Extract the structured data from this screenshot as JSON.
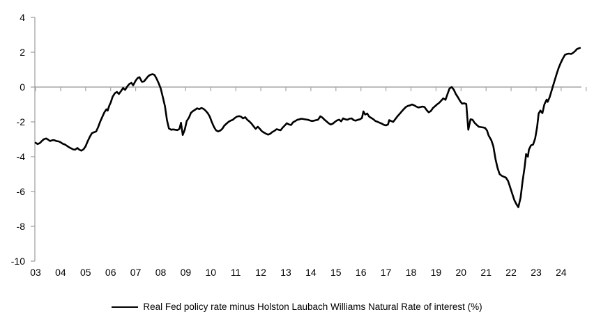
{
  "chart": {
    "legend_label": "Real Fed policy rate minus Holston Laubach Williams Natural Rate of interest (%)",
    "colors": {
      "line": "#000000",
      "zero_line": "#a6a6a6",
      "axis": "#9b9b9b",
      "tick": "#a6a6a6",
      "label": "#000000",
      "background": "#ffffff"
    }
  },
  "chart_data": {
    "type": "line",
    "title": "",
    "xlabel": "",
    "ylabel": "",
    "grid": false,
    "legend_position": "bottom-center",
    "ylim": [
      -10,
      4
    ],
    "xlim": [
      2003,
      2025
    ],
    "y_ticks": [
      4,
      2,
      0,
      -2,
      -4,
      -6,
      -8,
      -10
    ],
    "x_ticks": [
      {
        "year": 2003,
        "label": "03"
      },
      {
        "year": 2004,
        "label": "04"
      },
      {
        "year": 2005,
        "label": "05"
      },
      {
        "year": 2006,
        "label": "06"
      },
      {
        "year": 2007,
        "label": "07"
      },
      {
        "year": 2008,
        "label": "08"
      },
      {
        "year": 2009,
        "label": "09"
      },
      {
        "year": 2010,
        "label": "10"
      },
      {
        "year": 2011,
        "label": "11"
      },
      {
        "year": 2012,
        "label": "12"
      },
      {
        "year": 2013,
        "label": "13"
      },
      {
        "year": 2014,
        "label": "14"
      },
      {
        "year": 2015,
        "label": "15"
      },
      {
        "year": 2016,
        "label": "16"
      },
      {
        "year": 2017,
        "label": "17"
      },
      {
        "year": 2018,
        "label": "18"
      },
      {
        "year": 2019,
        "label": "19"
      },
      {
        "year": 2020,
        "label": "20"
      },
      {
        "year": 2021,
        "label": "21"
      },
      {
        "year": 2022,
        "label": "22"
      },
      {
        "year": 2023,
        "label": "23"
      },
      {
        "year": 2024,
        "label": "24"
      }
    ],
    "series": [
      {
        "name": "Real Fed policy rate minus Holston Laubach Williams Natural Rate of interest (%)",
        "points": [
          [
            2003.0,
            -3.2
          ],
          [
            2003.08,
            -3.27
          ],
          [
            2003.17,
            -3.22
          ],
          [
            2003.25,
            -3.1
          ],
          [
            2003.33,
            -3.0
          ],
          [
            2003.42,
            -2.95
          ],
          [
            2003.5,
            -3.02
          ],
          [
            2003.58,
            -3.1
          ],
          [
            2003.67,
            -3.05
          ],
          [
            2003.75,
            -3.05
          ],
          [
            2003.83,
            -3.1
          ],
          [
            2003.92,
            -3.12
          ],
          [
            2004.0,
            -3.17
          ],
          [
            2004.08,
            -3.25
          ],
          [
            2004.17,
            -3.3
          ],
          [
            2004.25,
            -3.37
          ],
          [
            2004.33,
            -3.45
          ],
          [
            2004.42,
            -3.52
          ],
          [
            2004.5,
            -3.58
          ],
          [
            2004.58,
            -3.6
          ],
          [
            2004.67,
            -3.5
          ],
          [
            2004.75,
            -3.6
          ],
          [
            2004.83,
            -3.65
          ],
          [
            2004.92,
            -3.57
          ],
          [
            2005.0,
            -3.4
          ],
          [
            2005.08,
            -3.12
          ],
          [
            2005.17,
            -2.85
          ],
          [
            2005.25,
            -2.65
          ],
          [
            2005.33,
            -2.6
          ],
          [
            2005.42,
            -2.55
          ],
          [
            2005.5,
            -2.3
          ],
          [
            2005.58,
            -2.0
          ],
          [
            2005.67,
            -1.7
          ],
          [
            2005.75,
            -1.45
          ],
          [
            2005.83,
            -1.28
          ],
          [
            2005.88,
            -1.35
          ],
          [
            2005.95,
            -1.05
          ],
          [
            2006.0,
            -0.9
          ],
          [
            2006.08,
            -0.55
          ],
          [
            2006.17,
            -0.35
          ],
          [
            2006.25,
            -0.28
          ],
          [
            2006.33,
            -0.4
          ],
          [
            2006.42,
            -0.22
          ],
          [
            2006.5,
            -0.05
          ],
          [
            2006.58,
            -0.16
          ],
          [
            2006.67,
            0.05
          ],
          [
            2006.75,
            0.18
          ],
          [
            2006.83,
            0.24
          ],
          [
            2006.9,
            0.1
          ],
          [
            2007.0,
            0.37
          ],
          [
            2007.08,
            0.52
          ],
          [
            2007.15,
            0.57
          ],
          [
            2007.25,
            0.3
          ],
          [
            2007.33,
            0.32
          ],
          [
            2007.42,
            0.48
          ],
          [
            2007.5,
            0.62
          ],
          [
            2007.58,
            0.7
          ],
          [
            2007.67,
            0.74
          ],
          [
            2007.75,
            0.7
          ],
          [
            2007.83,
            0.5
          ],
          [
            2007.92,
            0.22
          ],
          [
            2008.0,
            -0.08
          ],
          [
            2008.08,
            -0.55
          ],
          [
            2008.17,
            -1.1
          ],
          [
            2008.25,
            -1.9
          ],
          [
            2008.33,
            -2.38
          ],
          [
            2008.42,
            -2.45
          ],
          [
            2008.5,
            -2.43
          ],
          [
            2008.58,
            -2.45
          ],
          [
            2008.67,
            -2.47
          ],
          [
            2008.75,
            -2.4
          ],
          [
            2008.81,
            -2.05
          ],
          [
            2008.88,
            -2.75
          ],
          [
            2008.96,
            -2.45
          ],
          [
            2009.04,
            -1.95
          ],
          [
            2009.13,
            -1.75
          ],
          [
            2009.21,
            -1.48
          ],
          [
            2009.29,
            -1.38
          ],
          [
            2009.38,
            -1.3
          ],
          [
            2009.46,
            -1.22
          ],
          [
            2009.54,
            -1.27
          ],
          [
            2009.63,
            -1.2
          ],
          [
            2009.71,
            -1.25
          ],
          [
            2009.79,
            -1.35
          ],
          [
            2009.88,
            -1.5
          ],
          [
            2009.96,
            -1.7
          ],
          [
            2010.04,
            -2.0
          ],
          [
            2010.13,
            -2.3
          ],
          [
            2010.21,
            -2.48
          ],
          [
            2010.29,
            -2.55
          ],
          [
            2010.38,
            -2.5
          ],
          [
            2010.46,
            -2.4
          ],
          [
            2010.54,
            -2.22
          ],
          [
            2010.63,
            -2.1
          ],
          [
            2010.71,
            -2.0
          ],
          [
            2010.79,
            -1.93
          ],
          [
            2010.88,
            -1.88
          ],
          [
            2010.96,
            -1.78
          ],
          [
            2011.04,
            -1.7
          ],
          [
            2011.13,
            -1.67
          ],
          [
            2011.21,
            -1.7
          ],
          [
            2011.29,
            -1.8
          ],
          [
            2011.38,
            -1.73
          ],
          [
            2011.46,
            -1.88
          ],
          [
            2011.54,
            -1.97
          ],
          [
            2011.63,
            -2.1
          ],
          [
            2011.71,
            -2.25
          ],
          [
            2011.79,
            -2.4
          ],
          [
            2011.88,
            -2.28
          ],
          [
            2011.96,
            -2.4
          ],
          [
            2012.04,
            -2.53
          ],
          [
            2012.13,
            -2.62
          ],
          [
            2012.21,
            -2.68
          ],
          [
            2012.29,
            -2.73
          ],
          [
            2012.38,
            -2.68
          ],
          [
            2012.46,
            -2.58
          ],
          [
            2012.54,
            -2.52
          ],
          [
            2012.63,
            -2.42
          ],
          [
            2012.71,
            -2.45
          ],
          [
            2012.79,
            -2.48
          ],
          [
            2012.88,
            -2.32
          ],
          [
            2012.96,
            -2.2
          ],
          [
            2013.04,
            -2.08
          ],
          [
            2013.13,
            -2.15
          ],
          [
            2013.21,
            -2.18
          ],
          [
            2013.29,
            -2.02
          ],
          [
            2013.38,
            -1.95
          ],
          [
            2013.46,
            -1.88
          ],
          [
            2013.54,
            -1.85
          ],
          [
            2013.63,
            -1.82
          ],
          [
            2013.71,
            -1.84
          ],
          [
            2013.79,
            -1.86
          ],
          [
            2013.88,
            -1.88
          ],
          [
            2013.96,
            -1.92
          ],
          [
            2014.04,
            -1.95
          ],
          [
            2014.13,
            -1.93
          ],
          [
            2014.21,
            -1.9
          ],
          [
            2014.29,
            -1.87
          ],
          [
            2014.38,
            -1.68
          ],
          [
            2014.46,
            -1.75
          ],
          [
            2014.54,
            -1.87
          ],
          [
            2014.63,
            -1.98
          ],
          [
            2014.71,
            -2.08
          ],
          [
            2014.79,
            -2.15
          ],
          [
            2014.88,
            -2.1
          ],
          [
            2014.96,
            -2.0
          ],
          [
            2015.04,
            -1.92
          ],
          [
            2015.13,
            -1.87
          ],
          [
            2015.21,
            -1.97
          ],
          [
            2015.29,
            -1.8
          ],
          [
            2015.38,
            -1.85
          ],
          [
            2015.46,
            -1.88
          ],
          [
            2015.54,
            -1.82
          ],
          [
            2015.63,
            -1.8
          ],
          [
            2015.71,
            -1.9
          ],
          [
            2015.79,
            -1.93
          ],
          [
            2015.88,
            -1.88
          ],
          [
            2015.96,
            -1.85
          ],
          [
            2016.04,
            -1.78
          ],
          [
            2016.1,
            -1.4
          ],
          [
            2016.17,
            -1.58
          ],
          [
            2016.25,
            -1.52
          ],
          [
            2016.33,
            -1.7
          ],
          [
            2016.42,
            -1.78
          ],
          [
            2016.5,
            -1.85
          ],
          [
            2016.58,
            -1.95
          ],
          [
            2016.67,
            -2.0
          ],
          [
            2016.75,
            -2.05
          ],
          [
            2016.83,
            -2.1
          ],
          [
            2016.92,
            -2.17
          ],
          [
            2017.0,
            -2.2
          ],
          [
            2017.08,
            -2.15
          ],
          [
            2017.13,
            -1.9
          ],
          [
            2017.21,
            -1.95
          ],
          [
            2017.29,
            -2.0
          ],
          [
            2017.38,
            -1.83
          ],
          [
            2017.46,
            -1.68
          ],
          [
            2017.54,
            -1.55
          ],
          [
            2017.63,
            -1.4
          ],
          [
            2017.71,
            -1.27
          ],
          [
            2017.79,
            -1.15
          ],
          [
            2017.88,
            -1.08
          ],
          [
            2017.96,
            -1.05
          ],
          [
            2018.04,
            -1.0
          ],
          [
            2018.13,
            -1.05
          ],
          [
            2018.21,
            -1.12
          ],
          [
            2018.29,
            -1.17
          ],
          [
            2018.38,
            -1.15
          ],
          [
            2018.46,
            -1.12
          ],
          [
            2018.54,
            -1.15
          ],
          [
            2018.63,
            -1.33
          ],
          [
            2018.71,
            -1.45
          ],
          [
            2018.79,
            -1.38
          ],
          [
            2018.88,
            -1.2
          ],
          [
            2018.96,
            -1.1
          ],
          [
            2019.04,
            -1.0
          ],
          [
            2019.13,
            -0.9
          ],
          [
            2019.21,
            -0.78
          ],
          [
            2019.29,
            -0.65
          ],
          [
            2019.38,
            -0.73
          ],
          [
            2019.46,
            -0.4
          ],
          [
            2019.54,
            -0.08
          ],
          [
            2019.63,
            0.0
          ],
          [
            2019.71,
            -0.15
          ],
          [
            2019.79,
            -0.4
          ],
          [
            2019.88,
            -0.6
          ],
          [
            2019.96,
            -0.8
          ],
          [
            2020.04,
            -0.95
          ],
          [
            2020.13,
            -0.93
          ],
          [
            2020.21,
            -0.97
          ],
          [
            2020.29,
            -2.45
          ],
          [
            2020.38,
            -1.85
          ],
          [
            2020.46,
            -1.88
          ],
          [
            2020.54,
            -2.05
          ],
          [
            2020.63,
            -2.18
          ],
          [
            2020.71,
            -2.28
          ],
          [
            2020.79,
            -2.3
          ],
          [
            2020.88,
            -2.32
          ],
          [
            2020.96,
            -2.35
          ],
          [
            2021.04,
            -2.5
          ],
          [
            2021.1,
            -2.78
          ],
          [
            2021.21,
            -3.05
          ],
          [
            2021.29,
            -3.4
          ],
          [
            2021.38,
            -4.15
          ],
          [
            2021.46,
            -4.65
          ],
          [
            2021.54,
            -5.0
          ],
          [
            2021.63,
            -5.1
          ],
          [
            2021.71,
            -5.15
          ],
          [
            2021.79,
            -5.2
          ],
          [
            2021.88,
            -5.4
          ],
          [
            2021.96,
            -5.75
          ],
          [
            2022.04,
            -6.1
          ],
          [
            2022.13,
            -6.5
          ],
          [
            2022.21,
            -6.72
          ],
          [
            2022.29,
            -6.9
          ],
          [
            2022.38,
            -6.35
          ],
          [
            2022.46,
            -5.4
          ],
          [
            2022.54,
            -4.6
          ],
          [
            2022.6,
            -3.85
          ],
          [
            2022.67,
            -4.0
          ],
          [
            2022.71,
            -3.6
          ],
          [
            2022.79,
            -3.35
          ],
          [
            2022.88,
            -3.3
          ],
          [
            2022.96,
            -2.95
          ],
          [
            2023.04,
            -2.3
          ],
          [
            2023.1,
            -1.52
          ],
          [
            2023.17,
            -1.35
          ],
          [
            2023.25,
            -1.5
          ],
          [
            2023.33,
            -1.0
          ],
          [
            2023.42,
            -0.72
          ],
          [
            2023.46,
            -0.85
          ],
          [
            2023.54,
            -0.58
          ],
          [
            2023.6,
            -0.3
          ],
          [
            2023.67,
            0.05
          ],
          [
            2023.75,
            0.42
          ],
          [
            2023.83,
            0.8
          ],
          [
            2023.9,
            1.1
          ],
          [
            2023.98,
            1.38
          ],
          [
            2024.06,
            1.62
          ],
          [
            2024.15,
            1.85
          ],
          [
            2024.23,
            1.9
          ],
          [
            2024.31,
            1.92
          ],
          [
            2024.4,
            1.9
          ],
          [
            2024.48,
            1.97
          ],
          [
            2024.56,
            2.07
          ],
          [
            2024.63,
            2.18
          ],
          [
            2024.7,
            2.22
          ],
          [
            2024.75,
            2.25
          ]
        ]
      }
    ]
  }
}
